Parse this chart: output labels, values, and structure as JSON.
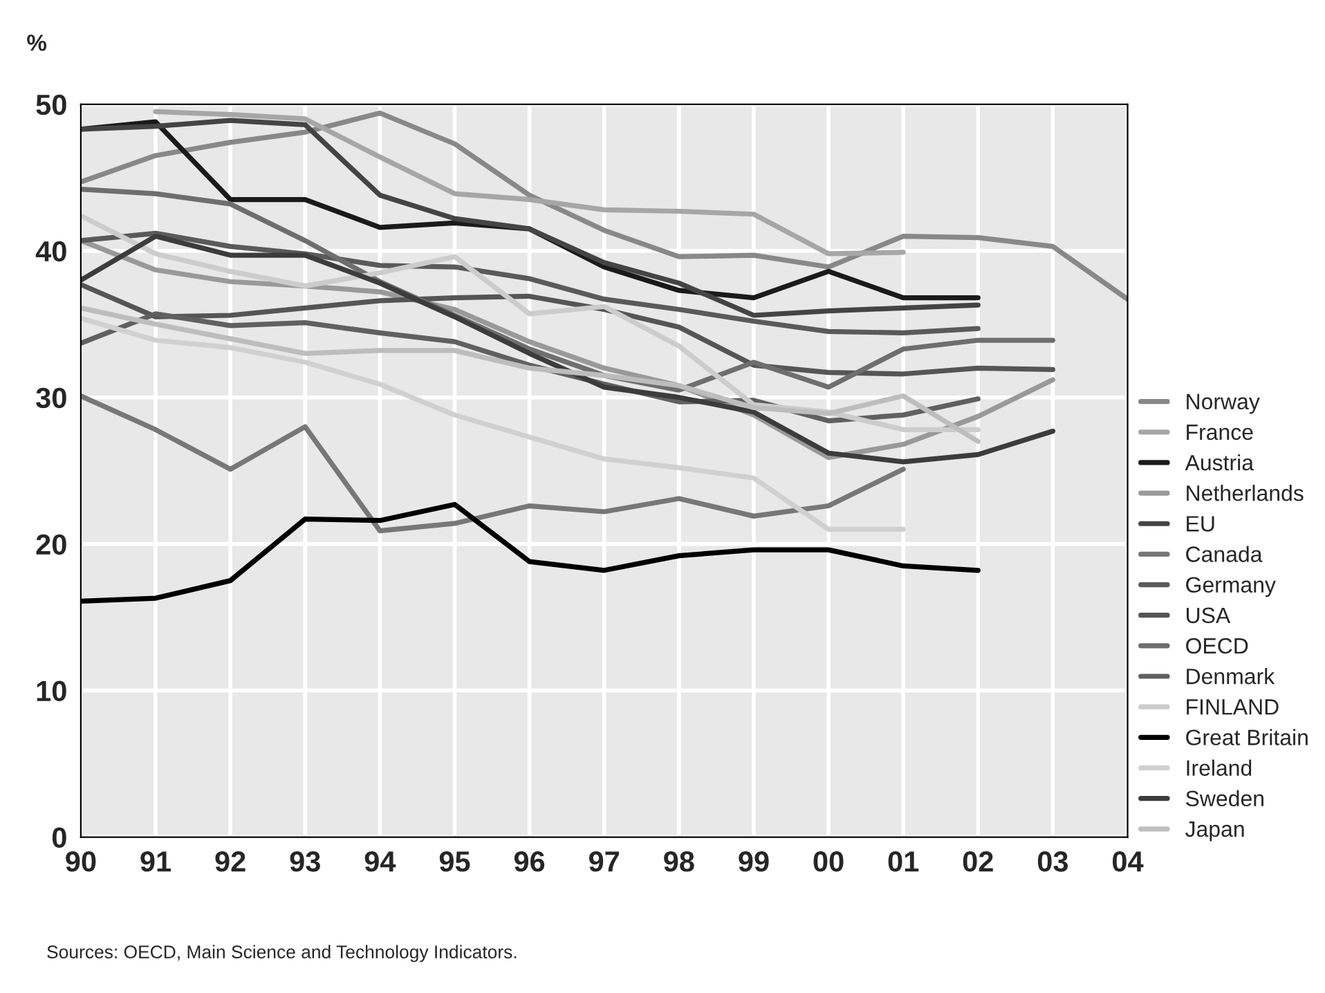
{
  "chart_data": {
    "type": "line",
    "ylabel": "%",
    "categories": [
      "90",
      "91",
      "92",
      "93",
      "94",
      "95",
      "96",
      "97",
      "98",
      "99",
      "00",
      "01",
      "02",
      "03",
      "04"
    ],
    "ylim": [
      0,
      50
    ],
    "yticks": [
      0,
      10,
      20,
      30,
      40,
      50
    ],
    "grid": true,
    "legend": "right",
    "marker": "none",
    "line_style": "solid",
    "annotations": [
      "Sources: OECD, Main Science and Technology Indicators."
    ],
    "series": [
      {
        "name": "Norway",
        "color": "#888888",
        "values": [
          44.7,
          46.5,
          47.4,
          48.1,
          49.4,
          47.3,
          43.8,
          41.4,
          39.6,
          39.7,
          38.9,
          41.0,
          40.9,
          40.3,
          36.7
        ]
      },
      {
        "name": "France",
        "color": "#a6a6a6",
        "values": [
          null,
          49.5,
          49.3,
          49.0,
          46.4,
          43.9,
          43.5,
          42.8,
          42.7,
          42.5,
          39.8,
          39.9,
          null,
          null,
          null
        ]
      },
      {
        "name": "Austria",
        "color": "#1a1a1a",
        "values": [
          48.3,
          48.8,
          43.5,
          43.5,
          41.6,
          41.9,
          41.5,
          38.9,
          37.3,
          36.8,
          38.6,
          36.8,
          36.8,
          null,
          null
        ]
      },
      {
        "name": "Netherlands",
        "color": "#999999",
        "values": [
          40.7,
          38.7,
          37.9,
          37.6,
          37.2,
          36.0,
          33.8,
          32.0,
          30.8,
          28.8,
          25.9,
          26.8,
          28.7,
          31.2,
          null
        ]
      },
      {
        "name": "EU",
        "color": "#444444",
        "values": [
          48.3,
          48.5,
          48.9,
          48.6,
          43.8,
          42.2,
          41.5,
          39.2,
          37.8,
          35.6,
          35.9,
          36.1,
          36.3,
          null,
          null
        ]
      },
      {
        "name": "Canada",
        "color": "#777777",
        "values": [
          30.1,
          27.8,
          25.1,
          28.0,
          20.9,
          21.4,
          22.6,
          22.2,
          23.1,
          21.9,
          22.6,
          25.1,
          null,
          null,
          null
        ]
      },
      {
        "name": "Germany",
        "color": "#5a5a5a",
        "values": [
          40.7,
          41.2,
          40.3,
          39.8,
          39.0,
          38.9,
          38.1,
          36.7,
          36.0,
          35.2,
          34.5,
          34.4,
          34.7,
          null,
          null
        ]
      },
      {
        "name": "USA",
        "color": "#555555",
        "values": [
          37.7,
          35.5,
          35.6,
          36.1,
          36.6,
          36.8,
          36.9,
          36.0,
          34.8,
          32.2,
          31.7,
          31.6,
          32.0,
          31.9,
          null
        ]
      },
      {
        "name": "OECD",
        "color": "#6e6e6e",
        "values": [
          44.2,
          43.9,
          43.2,
          40.7,
          37.9,
          35.6,
          33.3,
          31.5,
          30.5,
          32.4,
          30.7,
          33.3,
          33.9,
          33.9,
          null
        ]
      },
      {
        "name": "Denmark",
        "color": "#606060",
        "values": [
          33.7,
          35.7,
          34.9,
          35.1,
          34.4,
          33.8,
          32.2,
          30.9,
          29.7,
          29.8,
          28.4,
          28.8,
          29.9,
          null,
          null
        ]
      },
      {
        "name": "FINLAND",
        "color": "#cccccc",
        "values": [
          42.4,
          39.8,
          38.6,
          37.6,
          38.5,
          39.6,
          35.7,
          36.2,
          33.5,
          29.5,
          29.0,
          27.8,
          27.8,
          null,
          null
        ]
      },
      {
        "name": "Great Britain",
        "color": "#000000",
        "values": [
          16.1,
          16.3,
          17.5,
          21.7,
          21.6,
          22.7,
          18.8,
          18.2,
          19.2,
          19.6,
          19.6,
          18.5,
          18.2,
          null,
          null
        ]
      },
      {
        "name": "Ireland",
        "color": "#d0d0d0",
        "values": [
          35.4,
          33.9,
          33.4,
          32.4,
          30.9,
          28.8,
          27.3,
          25.8,
          25.2,
          24.5,
          21.0,
          21.0,
          null,
          null,
          null
        ]
      },
      {
        "name": "Sweden",
        "color": "#3c3c3c",
        "values": [
          38.0,
          41.0,
          39.7,
          39.7,
          37.8,
          35.5,
          33.0,
          30.7,
          30.0,
          29.0,
          26.2,
          25.6,
          26.1,
          27.7,
          null
        ]
      },
      {
        "name": "Japan",
        "color": "#bdbdbd",
        "values": [
          36.1,
          35.0,
          34.0,
          33.0,
          33.2,
          33.2,
          32.0,
          31.5,
          30.8,
          29.3,
          28.9,
          30.1,
          27.0,
          null,
          null
        ]
      }
    ]
  }
}
